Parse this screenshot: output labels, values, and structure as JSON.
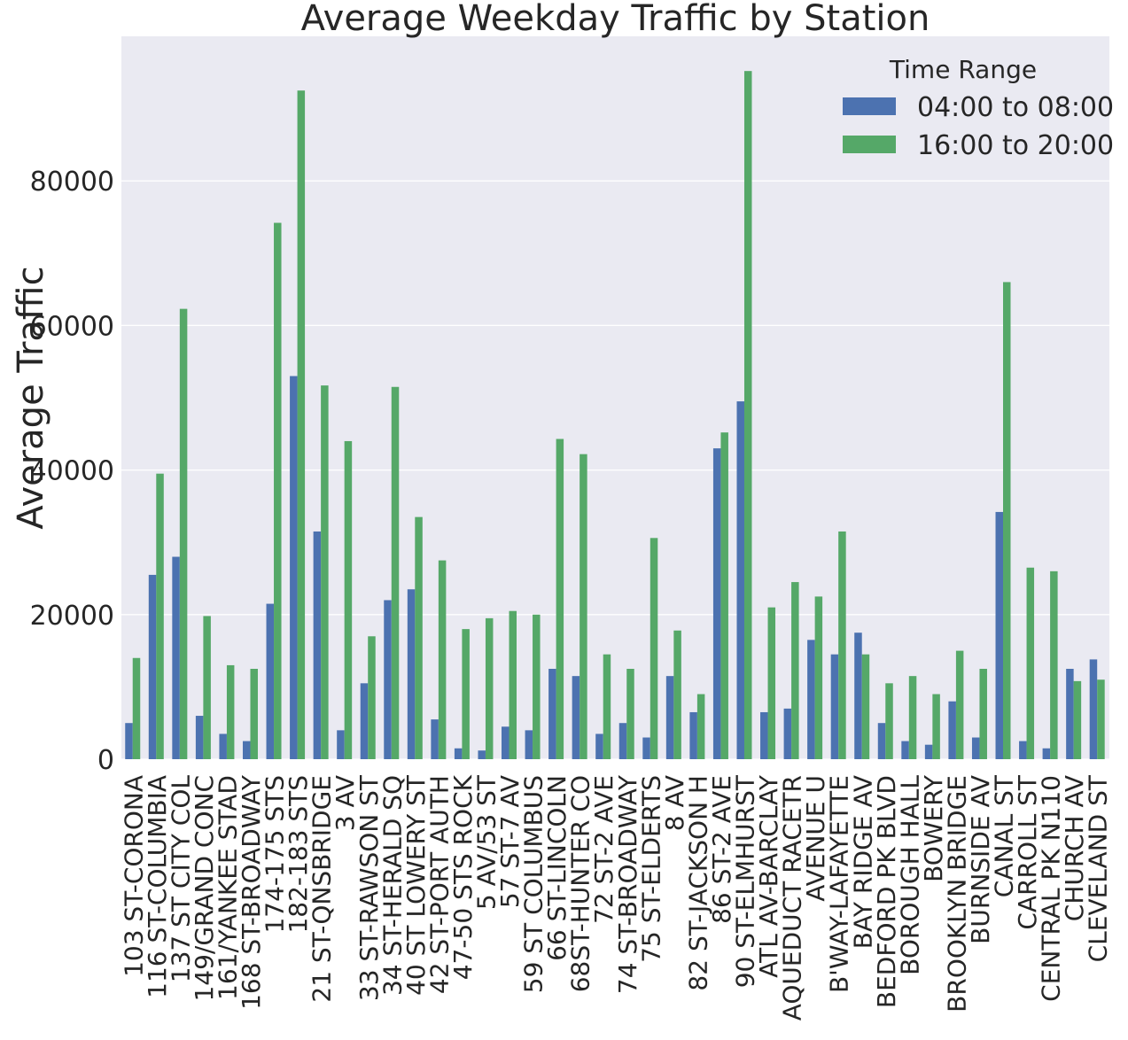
{
  "colors": {
    "plot_bg": "#EAEAF2",
    "grid": "#FFFFFF",
    "series_1": "#4C72B0",
    "series_2": "#55A868",
    "text": "#262626"
  },
  "chart_data": {
    "type": "bar",
    "title": "Average Weekday Traffic by Station",
    "xlabel": "",
    "ylabel": "Average Traffic",
    "ylim": [
      0,
      100000
    ],
    "yticks": [
      0,
      20000,
      40000,
      60000,
      80000
    ],
    "grid": true,
    "legend": {
      "title": "Time Range",
      "placement": "top-right"
    },
    "categories": [
      "103 ST-CORONA",
      "116 ST-COLUMBIA",
      "137 ST CITY COL",
      "149/GRAND CONC",
      "161/YANKEE STAD",
      "168 ST-BROADWAY",
      "174-175 STS",
      "182-183 STS",
      "21 ST-QNSBRIDGE",
      "3 AV",
      "33 ST-RAWSON ST",
      "34 ST-HERALD SQ",
      "40 ST LOWERY ST",
      "42 ST-PORT AUTH",
      "47-50 STS ROCK",
      "5 AV/53 ST",
      "57 ST-7 AV",
      "59 ST COLUMBUS",
      "66 ST-LINCOLN",
      "68ST-HUNTER CO",
      "72 ST-2 AVE",
      "74 ST-BROADWAY",
      "75 ST-ELDERTS",
      "8 AV",
      "82 ST-JACKSON H",
      "86 ST-2 AVE",
      "90 ST-ELMHURST",
      "ATL AV-BARCLAY",
      "AQUEDUCT RACETR",
      "AVENUE U",
      "B'WAY-LAFAYETTE",
      "BAY RIDGE AV",
      "BEDFORD PK BLVD",
      "BOROUGH HALL",
      "BOWERY",
      "BROOKLYN BRIDGE",
      "BURNSIDE AV",
      "CANAL ST",
      "CARROLL ST",
      "CENTRAL PK N110",
      "CHURCH AV",
      "CLEVELAND ST"
    ],
    "series": [
      {
        "name": "04:00 to 08:00",
        "values": [
          5000,
          25500,
          28000,
          6000,
          3500,
          2500,
          21500,
          53000,
          31500,
          4000,
          10500,
          22000,
          23500,
          5500,
          1500,
          1200,
          4500,
          4000,
          12500,
          11500,
          3500,
          5000,
          3000,
          11500,
          6500,
          43000,
          49500,
          6500,
          7000,
          16500,
          14500,
          17500,
          5000,
          2500,
          2000,
          8000,
          3000,
          34200,
          2500,
          1500,
          12500,
          13800
        ]
      },
      {
        "name": "16:00 to 20:00",
        "values": [
          14000,
          39500,
          62300,
          19800,
          13000,
          12500,
          74200,
          92500,
          51700,
          44000,
          17000,
          51500,
          33500,
          27500,
          18000,
          19500,
          20500,
          20000,
          44300,
          42200,
          14500,
          12500,
          30600,
          17800,
          9000,
          45200,
          95200,
          21000,
          24500,
          22500,
          31500,
          14500,
          10500,
          11500,
          9000,
          15000,
          12500,
          66000,
          26500,
          26000,
          10800,
          11000
        ]
      }
    ]
  }
}
